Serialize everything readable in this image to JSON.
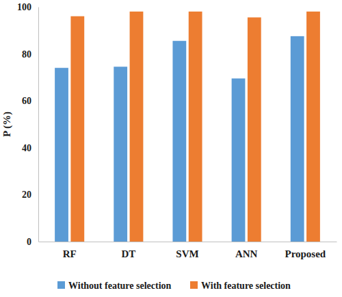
{
  "chart_data": {
    "type": "bar",
    "y_label": "P (%)",
    "categories": [
      "RF",
      "DT",
      "SVM",
      "ANN",
      "Proposed"
    ],
    "series": [
      {
        "name": "Without feature selection",
        "color": "#5b9bd5",
        "values": [
          74,
          74.5,
          85.5,
          69.5,
          87.5
        ]
      },
      {
        "name": "With feature selection",
        "color": "#ed7d31",
        "values": [
          96,
          98,
          98,
          95.5,
          98
        ]
      }
    ],
    "ylim": [
      0,
      100
    ],
    "yticks": [
      0,
      20,
      40,
      60,
      80,
      100
    ],
    "grid": false,
    "legend": "bottom"
  }
}
